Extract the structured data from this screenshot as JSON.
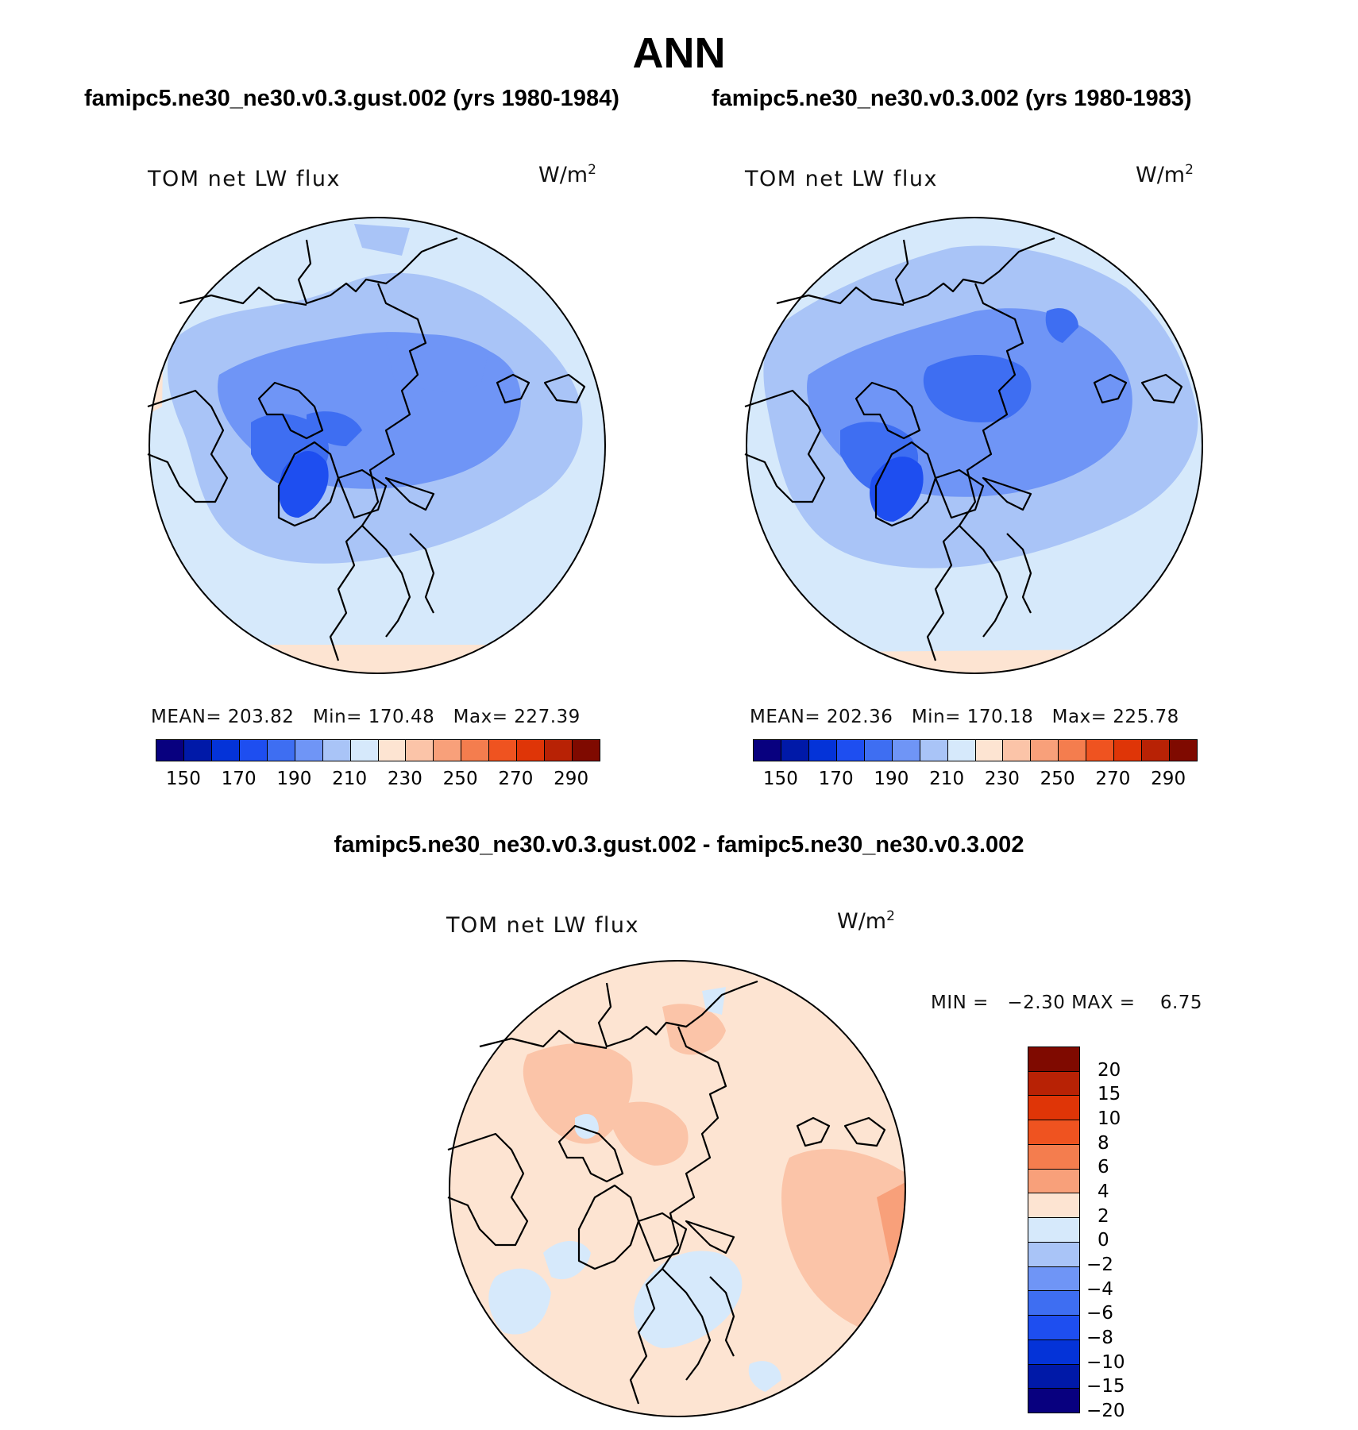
{
  "title": "ANN",
  "panels": {
    "test": {
      "case_title": "famipc5.ne30_ne30.v0.3.gust.002 (yrs 1980-1984)",
      "variable": "TOM net LW flux",
      "units_text": "W/m",
      "units_sup": "2",
      "stats": {
        "mean_label": "MEAN=",
        "mean": "203.82",
        "min_label": "Min=",
        "min": "170.48",
        "max_label": "Max=",
        "max": "227.39"
      }
    },
    "control": {
      "case_title": "famipc5.ne30_ne30.v0.3.002 (yrs 1980-1983)",
      "variable": "TOM net LW flux",
      "units_text": "W/m",
      "units_sup": "2",
      "stats": {
        "mean_label": "MEAN=",
        "mean": "202.36",
        "min_label": "Min=",
        "min": "170.18",
        "max_label": "Max=",
        "max": "225.78"
      }
    },
    "difference": {
      "case_title": "famipc5.ne30_ne30.v0.3.gust.002 - famipc5.ne30_ne30.v0.3.002",
      "variable": "TOM net LW flux",
      "units_text": "W/m",
      "units_sup": "2",
      "stats": {
        "min_label": "MIN =",
        "min": "−2.30",
        "max_label": "MAX =",
        "max": "6.75"
      }
    }
  },
  "colorbar_fields": {
    "colors": [
      "#08007f",
      "#0019a8",
      "#0433d8",
      "#1e4ef0",
      "#3e6ef2",
      "#6f95f6",
      "#a9c4f7",
      "#d6e9fb",
      "#fde4d2",
      "#fbc4a8",
      "#f8a07a",
      "#f47d4e",
      "#ef5320",
      "#df3507",
      "#b82205",
      "#7f0a00"
    ],
    "ticks": [
      "150",
      "170",
      "190",
      "210",
      "230",
      "250",
      "270",
      "290"
    ]
  },
  "colorbar_diff": {
    "colors": [
      "#7f0a00",
      "#b82205",
      "#df3507",
      "#ef5320",
      "#f47d4e",
      "#f8a07a",
      "#fde4d2",
      "#d6e9fb",
      "#a9c4f7",
      "#6f95f6",
      "#3e6ef2",
      "#1e4ef0",
      "#0433d8",
      "#0019a8",
      "#08007f"
    ],
    "ticks": [
      "20",
      "15",
      "10",
      "8",
      "6",
      "4",
      "2",
      "0",
      "−2",
      "−4",
      "−6",
      "−8",
      "−10",
      "−15",
      "−20"
    ]
  },
  "chart_data": [
    {
      "type": "polar-stereographic contour map",
      "panel": "test",
      "title": "famipc5.ne30_ne30.v0.3.gust.002 (yrs 1980-1984)",
      "variable": "TOM net LW flux",
      "units": "W/m2",
      "mean": 203.82,
      "min": 170.48,
      "max": 227.39,
      "contour_levels": [
        150,
        160,
        170,
        180,
        190,
        200,
        210,
        220,
        230,
        240,
        250,
        260,
        270,
        280,
        290
      ]
    },
    {
      "type": "polar-stereographic contour map",
      "panel": "control",
      "title": "famipc5.ne30_ne30.v0.3.002 (yrs 1980-1983)",
      "variable": "TOM net LW flux",
      "units": "W/m2",
      "mean": 202.36,
      "min": 170.18,
      "max": 225.78,
      "contour_levels": [
        150,
        160,
        170,
        180,
        190,
        200,
        210,
        220,
        230,
        240,
        250,
        260,
        270,
        280,
        290
      ]
    },
    {
      "type": "polar-stereographic contour map",
      "panel": "difference",
      "title": "famipc5.ne30_ne30.v0.3.gust.002 - famipc5.ne30_ne30.v0.3.002",
      "variable": "TOM net LW flux",
      "units": "W/m2",
      "min": -2.3,
      "max": 6.75,
      "contour_levels": [
        -20,
        -15,
        -10,
        -8,
        -6,
        -4,
        -2,
        0,
        2,
        4,
        6,
        8,
        10,
        15,
        20
      ]
    }
  ]
}
